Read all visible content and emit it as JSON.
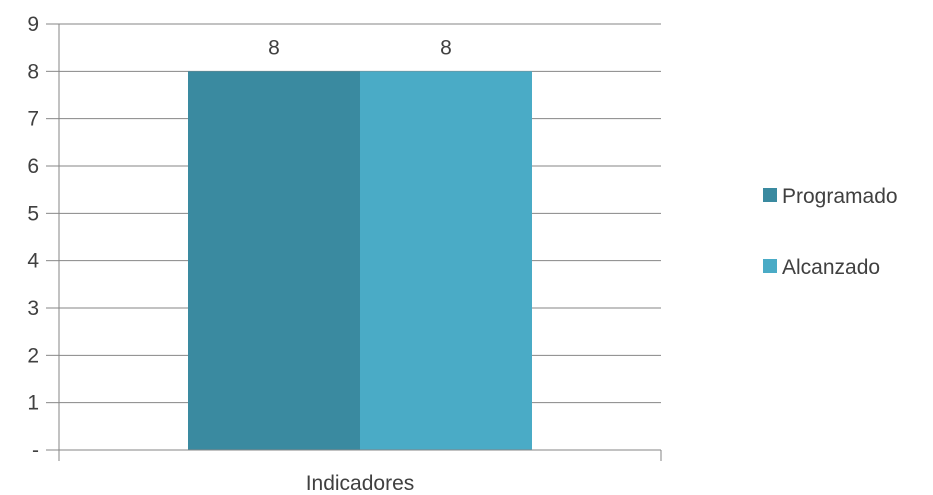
{
  "chart_data": {
    "type": "bar",
    "categories": [
      "Indicadores"
    ],
    "series": [
      {
        "name": "Programado",
        "values": [
          8
        ],
        "color": "#3a8aa0"
      },
      {
        "name": "Alcanzado",
        "values": [
          8
        ],
        "color": "#4aabc6"
      }
    ],
    "ylim": [
      0,
      9
    ],
    "y_ticks": [
      "-",
      "1",
      "2",
      "3",
      "4",
      "5",
      "6",
      "7",
      "8",
      "9"
    ],
    "data_labels": [
      "8",
      "8"
    ],
    "grid": true,
    "legend": "right",
    "gridline_color": "#868686"
  }
}
